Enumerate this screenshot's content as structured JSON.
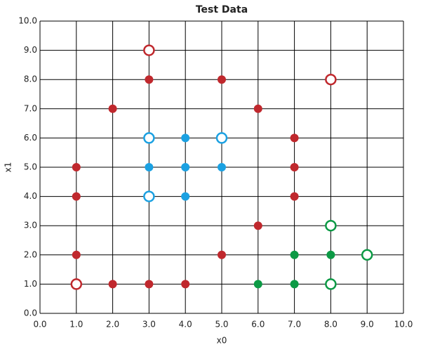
{
  "chart_data": {
    "type": "scatter",
    "title": "Test Data",
    "x_label": "x0",
    "y_label": "x1",
    "xlim": [
      0,
      10
    ],
    "ylim": [
      0,
      10
    ],
    "grid": true,
    "xticks": [
      {
        "value": 0,
        "label": "0.0"
      },
      {
        "value": 1,
        "label": "1.0"
      },
      {
        "value": 2,
        "label": "2.0"
      },
      {
        "value": 3,
        "label": "3.0"
      },
      {
        "value": 4,
        "label": "4.0"
      },
      {
        "value": 5,
        "label": "5.0"
      },
      {
        "value": 6,
        "label": "6.0"
      },
      {
        "value": 7,
        "label": "7.0"
      },
      {
        "value": 8,
        "label": "8.0"
      },
      {
        "value": 9,
        "label": "9.0"
      },
      {
        "value": 10,
        "label": "10.0"
      }
    ],
    "yticks": [
      {
        "value": 0,
        "label": "0.0"
      },
      {
        "value": 1,
        "label": "1.0"
      },
      {
        "value": 2,
        "label": "2.0"
      },
      {
        "value": 3,
        "label": "3.0"
      },
      {
        "value": 4,
        "label": "4.0"
      },
      {
        "value": 5,
        "label": "5.0"
      },
      {
        "value": 6,
        "label": "6.0"
      },
      {
        "value": 7,
        "label": "7.0"
      },
      {
        "value": 8,
        "label": "8.0"
      },
      {
        "value": 9,
        "label": "9.0"
      },
      {
        "value": 10,
        "label": "10.0"
      }
    ],
    "series": [
      {
        "color": "#c0282d",
        "marker": "filled",
        "x": [
          3,
          5,
          2,
          6,
          7,
          1,
          7,
          1,
          7,
          6,
          1,
          5,
          2,
          3,
          4
        ],
        "values": [
          8,
          8,
          7,
          7,
          6,
          5,
          5,
          4,
          4,
          3,
          2,
          2,
          1,
          1,
          1
        ]
      },
      {
        "color": "#c0282d",
        "marker": "open",
        "x": [
          3,
          8,
          1
        ],
        "values": [
          9,
          8,
          1
        ]
      },
      {
        "color": "#1ba1e2",
        "marker": "filled",
        "x": [
          4,
          3,
          4,
          5,
          4
        ],
        "values": [
          6,
          5,
          5,
          5,
          4
        ]
      },
      {
        "color": "#1ba1e2",
        "marker": "open",
        "x": [
          3,
          5,
          3
        ],
        "values": [
          6,
          6,
          4
        ]
      },
      {
        "color": "#0c9a45",
        "marker": "filled",
        "x": [
          7,
          8,
          6,
          7
        ],
        "values": [
          2,
          2,
          1,
          1
        ]
      },
      {
        "color": "#0c9a45",
        "marker": "open",
        "x": [
          8,
          9,
          8
        ],
        "values": [
          3,
          2,
          1
        ]
      }
    ]
  }
}
